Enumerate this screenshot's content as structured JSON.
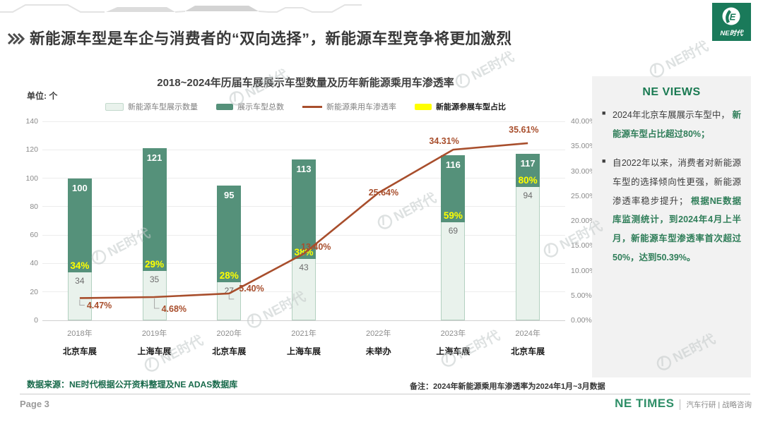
{
  "slide": {
    "page_label": "Page 3",
    "brand": "NE TIMES",
    "brand_sub": "汽车行研 | 战略咨询",
    "logo_text": "NE时代",
    "watermark_text": "NE时代"
  },
  "header": {
    "title": "新能源车型是车企与消费者的“双向选择”，新能源车型竞争将更加激烈"
  },
  "views_panel": {
    "title": "NE VIEWS",
    "bullets": [
      {
        "plain": "2024年北京车展展示车型中，",
        "highlight": "新能源车型占比超过80%；"
      },
      {
        "plain": "自2022年以来，消费者对新能源车型的选择倾向性更强，新能源渗透率稳步提升；",
        "highlight": "根据NE数据库监测统计，到2024年4月上半月，新能源车型渗透率首次超过50%，达到50.39%。"
      }
    ]
  },
  "footer": {
    "source": "数据来源：NE时代根据公开资料整理及NE  ADAS数据库",
    "note": "备注：2024年新能源乘用车渗透率为2024年1月~3月数据"
  },
  "chart_data": {
    "type": "combo-stacked-bar-line",
    "title": "2018~2024年历届车展展示车型数量及历年新能源乘用车渗透率",
    "unit_label": "单位: 个",
    "categories": [
      "2018年",
      "2019年",
      "2020年",
      "2021年",
      "2022年",
      "2023年",
      "2024年"
    ],
    "venues": [
      "北京车展",
      "上海车展",
      "北京车展",
      "上海车展",
      "未举办",
      "上海车展",
      "北京车展"
    ],
    "series": [
      {
        "name": "新能源车型展示数量",
        "type": "bar",
        "color": "#e9f2ec",
        "values": [
          34,
          35,
          27,
          43,
          null,
          69,
          94
        ]
      },
      {
        "name": "展示车型总数",
        "type": "bar",
        "color": "#55917a",
        "values": [
          100,
          121,
          95,
          113,
          null,
          116,
          117
        ]
      },
      {
        "name": "新能源乘用车渗透率",
        "type": "line",
        "color": "#a84e2c",
        "values": [
          4.47,
          4.68,
          5.4,
          13.4,
          25.64,
          34.31,
          35.61
        ],
        "labels": [
          "4.47%",
          "4.68%",
          "5.40%",
          "13.40%",
          "25.64%",
          "34.31%",
          "35.61%"
        ]
      },
      {
        "name": "新能源参展车型占比",
        "type": "label",
        "color": "#ffff00",
        "labels": [
          "34%",
          "29%",
          "28%",
          "38%",
          null,
          "59%",
          "80%"
        ],
        "emphasis": true
      }
    ],
    "left_axis": {
      "max": 140,
      "ticks": [
        "0",
        "20",
        "40",
        "60",
        "80",
        "100",
        "120",
        "140"
      ]
    },
    "right_axis": {
      "max": 40,
      "ticks": [
        "0.00%",
        "5.00%",
        "10.00%",
        "15.00%",
        "20.00%",
        "25.00%",
        "30.00%",
        "35.00%",
        "40.00%"
      ]
    },
    "legend_position": "top",
    "grid": "horizontal"
  }
}
